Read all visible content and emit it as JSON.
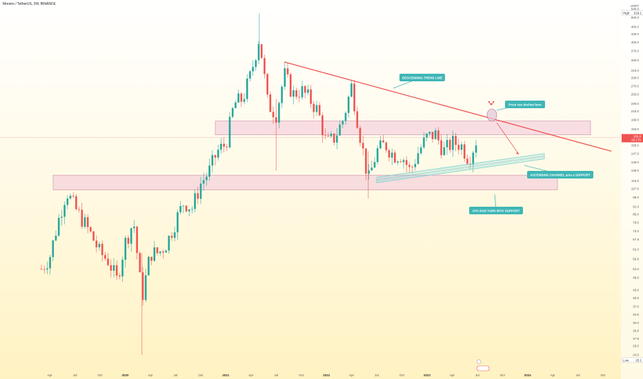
{
  "header": {
    "title": "Monero / TetherUS, 2W, BINANCE"
  },
  "axis": {
    "currency": "USDT",
    "high_label": "High",
    "high_value": "519.1",
    "low_label": "Low",
    "low_value": "25.1",
    "last_price": "169.8",
    "countdown": "9d 17h",
    "y_ticks": [
      "540.0",
      "500.0",
      "460.0",
      "430.0",
      "400.0",
      "370.0",
      "340.0",
      "310.0",
      "290.0",
      "270.0",
      "250.0",
      "230.0",
      "215.0",
      "199.0",
      "183.0",
      "171.0",
      "158.0",
      "147.0",
      "136.0",
      "126.0",
      "115.0",
      "107.0",
      "99.0",
      "91.0",
      "85.0",
      "79.0",
      "73.0",
      "67.8",
      "62.0",
      "56.8",
      "52.0",
      "48.0",
      "43.0",
      "40.0",
      "37.0",
      "34.5",
      "32.0",
      "29.8",
      "27.8",
      "26.0",
      "24.0"
    ],
    "x_ticks": [
      "Apr",
      "Jul",
      "Oct",
      "2020",
      "Apr",
      "Jul",
      "Oct",
      "2021",
      "Apr",
      "Jul",
      "Oct",
      "2022",
      "Apr",
      "Jul",
      "Oct",
      "2023",
      "Apr",
      "Jul",
      "Oct",
      "2024",
      "Apr",
      "Jul",
      "Oct"
    ],
    "bold_x_ticks": [
      "2020",
      "2021",
      "2022",
      "2023",
      "2024"
    ]
  },
  "annotations": {
    "descending": "DESCENDING TREND LINE",
    "decline": "Price can decline here",
    "ascending": "ASCENDING CHANNEL acts a SUPPORT",
    "ath": "ATH 2019 TURN INTO SUPPORT"
  },
  "colors": {
    "up": "#26a69a",
    "down": "#ef5350",
    "trendline": "#ef5350",
    "zone": "#f2c4d8",
    "channel": "#7fd3d3",
    "annotation_bg": "#3fb6b6"
  },
  "chart_data": {
    "type": "candlestick",
    "title": "Monero / TetherUS, 2W, BINANCE",
    "y_scale": "log",
    "ylim": [
      24,
      540
    ],
    "x_range": [
      "2019-03",
      "2024-11"
    ],
    "last_price": 169.8,
    "all_time_high": 519.1,
    "low": 25.1,
    "close_path": [
      {
        "date": "2019-03",
        "close": 52
      },
      {
        "date": "2019-04",
        "close": 58
      },
      {
        "date": "2019-05",
        "close": 80
      },
      {
        "date": "2019-06",
        "close": 105
      },
      {
        "date": "2019-07",
        "close": 90
      },
      {
        "date": "2019-08",
        "close": 80
      },
      {
        "date": "2019-09",
        "close": 70
      },
      {
        "date": "2019-10",
        "close": 60
      },
      {
        "date": "2019-11",
        "close": 56
      },
      {
        "date": "2019-12",
        "close": 47
      },
      {
        "date": "2020-01",
        "close": 66
      },
      {
        "date": "2020-02",
        "close": 80
      },
      {
        "date": "2020-03",
        "close": 40
      },
      {
        "date": "2020-04",
        "close": 60
      },
      {
        "date": "2020-05",
        "close": 60
      },
      {
        "date": "2020-06",
        "close": 66
      },
      {
        "date": "2020-07",
        "close": 80
      },
      {
        "date": "2020-08",
        "close": 95
      },
      {
        "date": "2020-09",
        "close": 90
      },
      {
        "date": "2020-10",
        "close": 112
      },
      {
        "date": "2020-11",
        "close": 125
      },
      {
        "date": "2020-12",
        "close": 150
      },
      {
        "date": "2021-01",
        "close": 160
      },
      {
        "date": "2021-02",
        "close": 230
      },
      {
        "date": "2021-03",
        "close": 240
      },
      {
        "date": "2021-04",
        "close": 300
      },
      {
        "date": "2021-05",
        "close": 420
      },
      {
        "date": "2021-06",
        "close": 230
      },
      {
        "date": "2021-07",
        "close": 210
      },
      {
        "date": "2021-08",
        "close": 300
      },
      {
        "date": "2021-09",
        "close": 250
      },
      {
        "date": "2021-10",
        "close": 260
      },
      {
        "date": "2021-11",
        "close": 240
      },
      {
        "date": "2021-12",
        "close": 215
      },
      {
        "date": "2022-01",
        "close": 160
      },
      {
        "date": "2022-02",
        "close": 170
      },
      {
        "date": "2022-03",
        "close": 200
      },
      {
        "date": "2022-04",
        "close": 270
      },
      {
        "date": "2022-05",
        "close": 175
      },
      {
        "date": "2022-06",
        "close": 115
      },
      {
        "date": "2022-07",
        "close": 150
      },
      {
        "date": "2022-08",
        "close": 160
      },
      {
        "date": "2022-09",
        "close": 145
      },
      {
        "date": "2022-10",
        "close": 145
      },
      {
        "date": "2022-11",
        "close": 125
      },
      {
        "date": "2022-12",
        "close": 150
      },
      {
        "date": "2023-01",
        "close": 170
      },
      {
        "date": "2023-02",
        "close": 175
      },
      {
        "date": "2023-03",
        "close": 150
      },
      {
        "date": "2023-04",
        "close": 162
      },
      {
        "date": "2023-05",
        "close": 160
      },
      {
        "date": "2023-06",
        "close": 140
      },
      {
        "date": "2023-07",
        "close": 169.8
      }
    ],
    "zones": [
      {
        "name": "upper zone",
        "from": 174,
        "to": 197
      },
      {
        "name": "lower zone",
        "from": 106,
        "to": 121
      }
    ],
    "lines": [
      {
        "name": "descending trend line",
        "from": {
          "date": "2021-08",
          "price": 335
        },
        "to": {
          "date": "2024-11",
          "price": 150
        }
      },
      {
        "name": "ascending channel",
        "from": {
          "date": "2022-07",
          "price": 113
        },
        "to": {
          "date": "2024-03",
          "price": 140
        }
      }
    ]
  }
}
